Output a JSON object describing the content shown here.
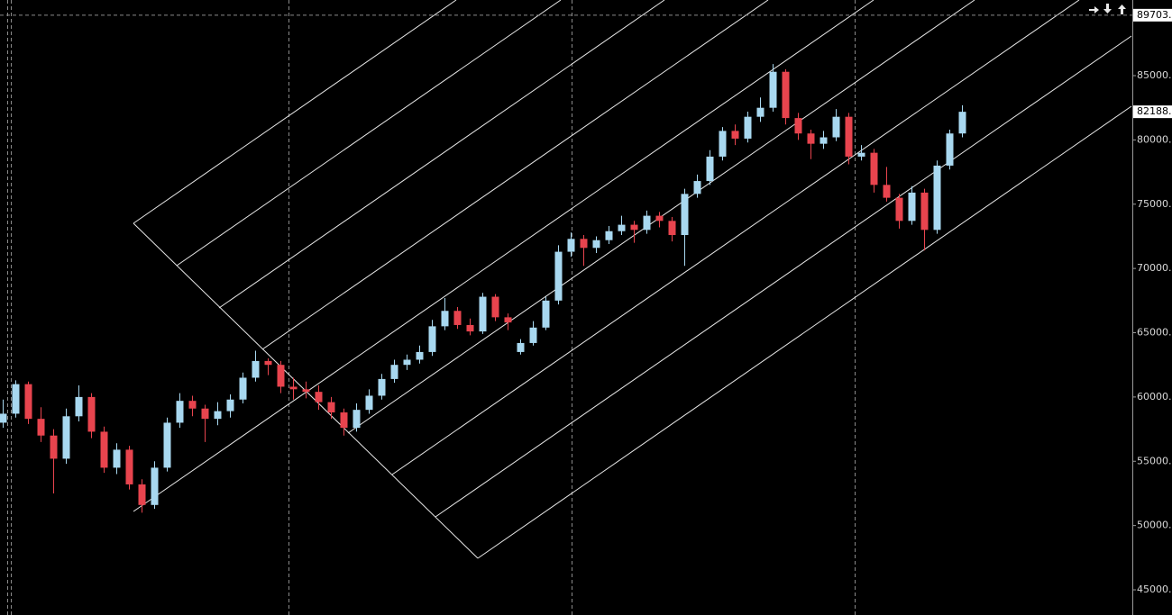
{
  "chart_data": {
    "type": "candlestick",
    "up_color": "#a8d8f0",
    "down_color": "#e8444e",
    "ohlc": [
      [
        58000,
        59800,
        57600,
        58700
      ],
      [
        58700,
        61300,
        58400,
        61000
      ],
      [
        61000,
        61200,
        57900,
        58300
      ],
      [
        58300,
        59200,
        56500,
        57000
      ],
      [
        57000,
        57500,
        52500,
        55200
      ],
      [
        55200,
        59100,
        54800,
        58500
      ],
      [
        58500,
        60900,
        58100,
        60000
      ],
      [
        60000,
        60300,
        56800,
        57300
      ],
      [
        57300,
        57700,
        54100,
        54500
      ],
      [
        54500,
        56400,
        54000,
        55900
      ],
      [
        55900,
        56200,
        52800,
        53200
      ],
      [
        53200,
        53600,
        51000,
        51600
      ],
      [
        51600,
        55000,
        51300,
        54500
      ],
      [
        54500,
        58400,
        54200,
        58000
      ],
      [
        58000,
        60300,
        57600,
        59700
      ],
      [
        59700,
        60100,
        58500,
        59100
      ],
      [
        59100,
        59400,
        56500,
        58300
      ],
      [
        58300,
        59600,
        57800,
        58900
      ],
      [
        58900,
        60200,
        58400,
        59800
      ],
      [
        59800,
        61900,
        59500,
        61500
      ],
      [
        61500,
        63600,
        61200,
        62800
      ],
      [
        62800,
        63000,
        61700,
        62500
      ],
      [
        62500,
        62800,
        60300,
        60800
      ],
      [
        60800,
        61500,
        59800,
        60600
      ],
      [
        60600,
        61200,
        59900,
        60400
      ],
      [
        60400,
        60900,
        59000,
        59600
      ],
      [
        59600,
        60000,
        58300,
        58800
      ],
      [
        58800,
        59100,
        57000,
        57600
      ],
      [
        57600,
        59500,
        57300,
        59000
      ],
      [
        59000,
        60600,
        58700,
        60100
      ],
      [
        60100,
        61800,
        59800,
        61400
      ],
      [
        61400,
        62900,
        61100,
        62500
      ],
      [
        62500,
        63300,
        62100,
        62900
      ],
      [
        62900,
        64000,
        62600,
        63500
      ],
      [
        63500,
        66000,
        63200,
        65500
      ],
      [
        65500,
        67700,
        65200,
        66700
      ],
      [
        66700,
        67000,
        65300,
        65600
      ],
      [
        65600,
        66100,
        64800,
        65100
      ],
      [
        65100,
        68100,
        64900,
        67800
      ],
      [
        67800,
        68000,
        65900,
        66200
      ],
      [
        66200,
        66500,
        65200,
        65800
      ],
      [
        63500,
        64500,
        63300,
        64200
      ],
      [
        64200,
        65900,
        64000,
        65400
      ],
      [
        65400,
        67800,
        65200,
        67500
      ],
      [
        67500,
        71800,
        67200,
        71300
      ],
      [
        71300,
        72800,
        70900,
        72300
      ],
      [
        72300,
        72600,
        70200,
        71600
      ],
      [
        71600,
        72500,
        71200,
        72200
      ],
      [
        72200,
        73300,
        71900,
        72900
      ],
      [
        72900,
        74100,
        72600,
        73400
      ],
      [
        73400,
        73700,
        72000,
        73000
      ],
      [
        73000,
        74500,
        72700,
        74100
      ],
      [
        74100,
        74400,
        73200,
        73700
      ],
      [
        73700,
        74000,
        72100,
        72600
      ],
      [
        72600,
        76200,
        70200,
        75800
      ],
      [
        75800,
        77300,
        75500,
        76800
      ],
      [
        76800,
        79200,
        76500,
        78700
      ],
      [
        78700,
        81000,
        78400,
        80700
      ],
      [
        80700,
        81200,
        79600,
        80100
      ],
      [
        80100,
        82200,
        79800,
        81800
      ],
      [
        81800,
        83300,
        81400,
        82500
      ],
      [
        82500,
        85900,
        82200,
        85300
      ],
      [
        85300,
        85500,
        81200,
        81700
      ],
      [
        81700,
        82100,
        80000,
        80500
      ],
      [
        80500,
        80800,
        78500,
        79700
      ],
      [
        79700,
        80700,
        79300,
        80200
      ],
      [
        80200,
        82400,
        79900,
        81800
      ],
      [
        81800,
        82100,
        78100,
        78700
      ],
      [
        78700,
        79600,
        78400,
        79000
      ],
      [
        79000,
        79300,
        75900,
        76500
      ],
      [
        76500,
        77900,
        75200,
        75500
      ],
      [
        75500,
        75800,
        73100,
        73700
      ],
      [
        73700,
        76400,
        73400,
        75900
      ],
      [
        75900,
        76200,
        71400,
        73000
      ],
      [
        73000,
        78400,
        72700,
        78000
      ],
      [
        78000,
        80800,
        77700,
        80500
      ],
      [
        80500,
        82700,
        80200,
        82188
      ]
    ],
    "ylim": [
      43040,
      90884
    ],
    "yticks": [
      {
        "value": 45000,
        "label": "45000."
      },
      {
        "value": 50000,
        "label": "50000."
      },
      {
        "value": 55000,
        "label": "55000."
      },
      {
        "value": 60000,
        "label": "60000."
      },
      {
        "value": 65000,
        "label": "65000."
      },
      {
        "value": 70000,
        "label": "70000."
      },
      {
        "value": 75000,
        "label": "75000."
      },
      {
        "value": 80000,
        "label": "80000."
      },
      {
        "value": 85000,
        "label": "85000."
      }
    ],
    "price_markers": [
      {
        "value": 89703,
        "label": "89703."
      },
      {
        "value": 82188,
        "label": "82188."
      }
    ]
  }
}
